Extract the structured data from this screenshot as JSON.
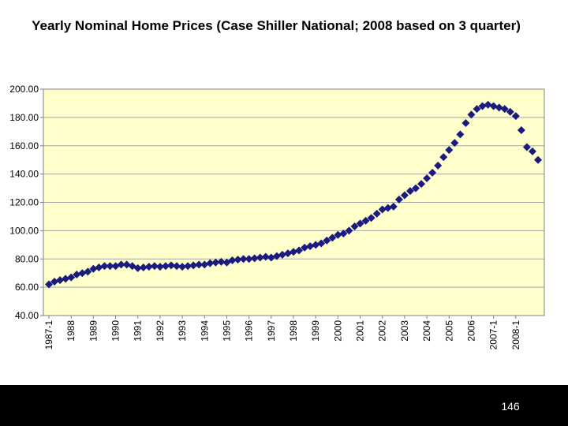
{
  "slide": {
    "page_number": "146"
  },
  "chart_data": {
    "type": "scatter",
    "title": "Yearly Nominal Home Prices (Case Shiller National; 2008 based on 3 quarter)",
    "xlabel": "",
    "ylabel": "",
    "ylim": [
      40,
      200
    ],
    "y_ticks": [
      "200.00",
      "180.00",
      "160.00",
      "140.00",
      "120.00",
      "100.00",
      "80.00",
      "60.00",
      "40.00"
    ],
    "y_tick_values": [
      200,
      180,
      160,
      140,
      120,
      100,
      80,
      60,
      40
    ],
    "x_tick_labels": [
      "1987-1",
      "1988",
      "1989",
      "1990",
      "1991",
      "1992",
      "1993",
      "1994",
      "1995",
      "1996",
      "1997",
      "1998",
      "1999",
      "2000",
      "2001",
      "2002",
      "2003",
      "2004",
      "2005",
      "2006",
      "2007-1",
      "2008-1"
    ],
    "x_tick_index": [
      0,
      4,
      8,
      12,
      16,
      20,
      24,
      28,
      32,
      36,
      40,
      44,
      48,
      52,
      56,
      60,
      64,
      68,
      72,
      76,
      80,
      84
    ],
    "grid": true,
    "marker": "diamond",
    "colors": {
      "marker": "#1a1a80",
      "plot_bg": "#ffffcc",
      "gridline": "#a6a6a6",
      "axis": "#808080"
    },
    "series": [
      {
        "name": "Case Shiller National",
        "values": [
          62,
          64,
          65,
          66,
          67,
          69,
          70,
          71,
          73,
          74,
          75,
          75,
          75,
          76,
          76,
          75,
          73.5,
          74,
          74.5,
          75,
          74.5,
          75,
          75.5,
          75,
          74.5,
          75,
          75.5,
          76,
          76,
          77,
          77.5,
          78,
          77.5,
          79,
          79.5,
          80,
          80,
          80.5,
          81,
          81.5,
          81,
          82,
          83,
          84,
          85,
          86,
          88,
          89,
          90,
          91,
          93,
          95,
          97,
          98,
          100,
          103,
          105,
          107,
          109,
          112,
          115,
          116,
          117,
          122,
          125,
          128,
          130,
          133,
          137,
          141,
          146,
          152,
          157,
          162,
          168,
          176,
          182,
          186,
          188,
          189,
          188,
          187,
          186,
          184,
          181,
          171,
          159,
          156,
          150
        ]
      }
    ]
  }
}
